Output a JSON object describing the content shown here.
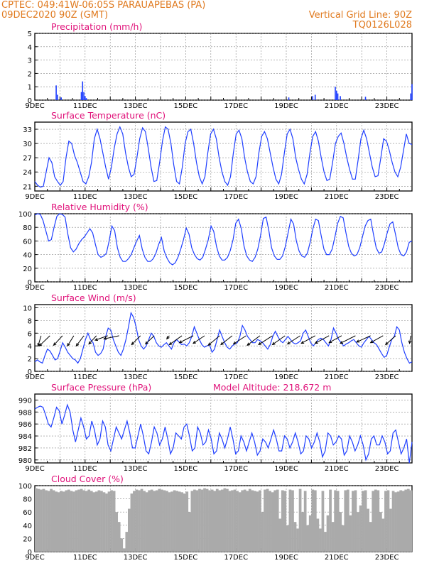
{
  "header": {
    "line1": "CPTEC:    049:41W-06:05S    PARAUAPEBAS (PA)",
    "line2": "09DEC2020 90Z (GMT)",
    "grid_label": "Vertical Grid Line: 90Z",
    "code": "TQ0126L028"
  },
  "colors": {
    "header": "#e07a1f",
    "title": "#e0127a",
    "line": "#1f3fff",
    "cloud": "#aaaaaa",
    "axis": "#000000"
  },
  "x_ticks": [
    "9DEC",
    "11DEC",
    "13DEC",
    "15DEC",
    "17DEC",
    "19DEC",
    "21DEC",
    "23DEC"
  ],
  "chart_data": [
    {
      "type": "bar",
      "title": "Precipitation (mm/h)",
      "ylim": [
        0,
        5
      ],
      "yticks": [
        "0",
        "1",
        "2",
        "3",
        "4",
        "5"
      ],
      "x_range_days": [
        9.0,
        24.0
      ],
      "points": [
        [
          9.85,
          1.1
        ],
        [
          9.9,
          0.4
        ],
        [
          10.05,
          0.2
        ],
        [
          10.85,
          0.6
        ],
        [
          10.9,
          1.4
        ],
        [
          10.95,
          0.6
        ],
        [
          11.0,
          0.3
        ],
        [
          11.05,
          0.15
        ],
        [
          19.1,
          0.2
        ],
        [
          20.05,
          0.3
        ],
        [
          20.15,
          0.4
        ],
        [
          20.95,
          1.0
        ],
        [
          21.0,
          0.7
        ],
        [
          21.05,
          0.5
        ],
        [
          21.15,
          0.3
        ],
        [
          22.15,
          0.25
        ],
        [
          23.95,
          0.5
        ],
        [
          24.0,
          1.2
        ]
      ]
    },
    {
      "type": "line",
      "title": "Surface Temperature (nC)",
      "ylim": [
        20,
        34.5
      ],
      "yticks": [
        "21",
        "24",
        "27",
        "30",
        "33"
      ],
      "x_range_days": [
        9.0,
        24.0
      ],
      "values": [
        22,
        21.2,
        20.8,
        21,
        24,
        27,
        26,
        23,
        22,
        21.2,
        22,
        27,
        30.5,
        30,
        27.5,
        26,
        24,
        22,
        21.5,
        23,
        26,
        31,
        33,
        31,
        28,
        25,
        22.5,
        25,
        29,
        32,
        33.5,
        32,
        28,
        25,
        23,
        23.5,
        27,
        31,
        33.3,
        32.5,
        29,
        25,
        22,
        22.2,
        26,
        30.5,
        33.5,
        33,
        30,
        25.5,
        22,
        21.5,
        25,
        30,
        32.5,
        33,
        30,
        26,
        23,
        21.5,
        23,
        28,
        32,
        33,
        31,
        27,
        24,
        22,
        21.2,
        23,
        28,
        32,
        32.8,
        31,
        27,
        24,
        22,
        21.5,
        23,
        28,
        31.5,
        32.5,
        31,
        28,
        25,
        22.5,
        21.5,
        23.5,
        28,
        32,
        33,
        31,
        27,
        24.5,
        22.5,
        21.5,
        23.5,
        28,
        31.5,
        32.5,
        30.5,
        27,
        24,
        22.2,
        22.5,
        26,
        30,
        31.5,
        32.2,
        30,
        27,
        24.5,
        22.5,
        22.5,
        26.5,
        31,
        32.8,
        31,
        28,
        25,
        23,
        23.2,
        27,
        31,
        30.5,
        28.5,
        26,
        24,
        23,
        25,
        28.5,
        32,
        30,
        29.8
      ]
    },
    {
      "type": "line",
      "title": "Relative Humidity (%)",
      "ylim": [
        0,
        100
      ],
      "yticks": [
        "0",
        "20",
        "40",
        "60",
        "80",
        "100"
      ],
      "x_range_days": [
        9.0,
        24.0
      ],
      "values": [
        98,
        100,
        99,
        90,
        75,
        60,
        62,
        80,
        96,
        100,
        99,
        95,
        70,
        50,
        44,
        48,
        56,
        62,
        66,
        72,
        78,
        72,
        55,
        40,
        36,
        38,
        42,
        60,
        82,
        75,
        50,
        36,
        30,
        30,
        34,
        40,
        50,
        60,
        68,
        48,
        36,
        30,
        30,
        34,
        42,
        55,
        65,
        45,
        35,
        28,
        25,
        28,
        36,
        48,
        62,
        79,
        70,
        50,
        40,
        34,
        32,
        36,
        48,
        62,
        82,
        74,
        52,
        38,
        32,
        32,
        36,
        46,
        62,
        86,
        92,
        78,
        52,
        38,
        32,
        30,
        36,
        48,
        68,
        93,
        95,
        75,
        50,
        38,
        33,
        33,
        38,
        52,
        72,
        92,
        85,
        60,
        45,
        38,
        36,
        42,
        58,
        78,
        92,
        90,
        68,
        48,
        40,
        40,
        48,
        66,
        86,
        96,
        94,
        72,
        52,
        42,
        38,
        40,
        50,
        66,
        82,
        90,
        92,
        70,
        50,
        42,
        44,
        56,
        72,
        85,
        88,
        70,
        50,
        40,
        38,
        44,
        58,
        60
      ]
    },
    {
      "type": "line",
      "title": "Surface Wind (m/s)",
      "ylim": [
        0,
        10.5
      ],
      "yticks": [
        "0",
        "2",
        "4",
        "6",
        "8",
        "10"
      ],
      "x_range_days": [
        9.0,
        24.0
      ],
      "values": [
        1.5,
        1.8,
        1.5,
        1.3,
        2.5,
        3.5,
        3.2,
        2.5,
        1.8,
        2.0,
        3.2,
        4.5,
        3.8,
        3.0,
        2.5,
        2.0,
        1.8,
        1.3,
        2.0,
        3.5,
        5.0,
        6.0,
        5.0,
        4.5,
        3.0,
        2.5,
        2.8,
        3.5,
        5.5,
        6.8,
        6.5,
        5.0,
        4.0,
        3.0,
        2.5,
        3.5,
        5.0,
        7.0,
        9.2,
        8.5,
        7.0,
        5.0,
        4.0,
        3.5,
        4.0,
        5.0,
        6.0,
        5.5,
        4.5,
        4.0,
        3.8,
        4.2,
        4.5,
        4.0,
        3.5,
        4.5,
        5.0,
        4.6,
        4.2,
        4.3,
        4.0,
        4.5,
        5.5,
        7.0,
        6.0,
        5.0,
        4.2,
        3.8,
        4.0,
        4.2,
        3.0,
        3.5,
        5.0,
        6.5,
        5.5,
        4.5,
        3.8,
        3.5,
        4.0,
        4.3,
        4.5,
        5.5,
        7.2,
        6.5,
        5.5,
        5.0,
        4.5,
        4.5,
        5.0,
        4.8,
        4.5,
        4.0,
        3.5,
        4.2,
        5.5,
        6.3,
        5.5,
        4.8,
        4.5,
        5.0,
        5.5,
        5.0,
        4.5,
        4.3,
        4.5,
        4.8,
        6.0,
        6.5,
        5.5,
        4.5,
        4.0,
        4.5,
        5.0,
        5.2,
        5.0,
        4.5,
        4.0,
        5.0,
        6.8,
        6.0,
        5.0,
        4.5,
        4.0,
        4.3,
        4.5,
        4.8,
        5.0,
        4.5,
        4.0,
        3.8,
        4.5,
        5.0,
        5.5,
        5.0,
        4.5,
        4.2,
        3.5,
        2.8,
        2.2,
        2.5,
        3.8,
        5.0,
        5.5,
        7.0,
        6.5,
        4.5,
        3.0,
        2.0,
        1.3,
        1.5
      ],
      "barbs": [
        {
          "x": 9.25,
          "dx": -0.12,
          "dy": -1.6
        },
        {
          "x": 9.6,
          "dx": -0.42,
          "dy": -1.6
        },
        {
          "x": 10.1,
          "dx": -0.35,
          "dy": -1.5
        },
        {
          "x": 10.55,
          "dx": -0.25,
          "dy": -1.6
        },
        {
          "x": 10.95,
          "dx": -0.3,
          "dy": -1.6
        },
        {
          "x": 11.45,
          "dx": -0.3,
          "dy": -1.3
        },
        {
          "x": 11.9,
          "dx": -0.5,
          "dy": -0.7
        },
        {
          "x": 12.35,
          "dx": -0.6,
          "dy": -0.5
        },
        {
          "x": 13.2,
          "dx": -0.35,
          "dy": -1.4
        },
        {
          "x": 13.75,
          "dx": -0.35,
          "dy": -1.3
        },
        {
          "x": 14.35,
          "dx": -0.1,
          "dy": -0.5
        },
        {
          "x": 14.85,
          "dx": -0.5,
          "dy": -1.4
        },
        {
          "x": 15.3,
          "dx": -0.55,
          "dy": -1.1
        },
        {
          "x": 15.75,
          "dx": -0.45,
          "dy": -1.2
        },
        {
          "x": 16.35,
          "dx": -0.45,
          "dy": -1.5
        },
        {
          "x": 16.85,
          "dx": -0.45,
          "dy": -1.4
        },
        {
          "x": 17.4,
          "dx": -0.5,
          "dy": -1.3
        },
        {
          "x": 17.95,
          "dx": -0.5,
          "dy": -1.5
        },
        {
          "x": 18.45,
          "dx": -0.55,
          "dy": -1.4
        },
        {
          "x": 18.95,
          "dx": -0.5,
          "dy": -1.4
        },
        {
          "x": 19.55,
          "dx": -0.5,
          "dy": -1.3
        },
        {
          "x": 20.15,
          "dx": -0.55,
          "dy": -1.2
        },
        {
          "x": 20.7,
          "dx": -0.55,
          "dy": -1.2
        },
        {
          "x": 21.2,
          "dx": -0.5,
          "dy": -1.1
        },
        {
          "x": 21.75,
          "dx": -0.6,
          "dy": -1.2
        },
        {
          "x": 22.35,
          "dx": -0.55,
          "dy": -1.0
        },
        {
          "x": 22.85,
          "dx": -0.5,
          "dy": -1.1
        },
        {
          "x": 23.35,
          "dx": -0.4,
          "dy": -1.4
        },
        {
          "x": 23.95,
          "dx": -0.05,
          "dy": -1.2
        }
      ]
    },
    {
      "type": "line",
      "title": "Surface Pressure (hPa)",
      "subtitle": "Model Altitude: 218.672 m",
      "ylim": [
        979.5,
        991
      ],
      "yticks": [
        "980",
        "982",
        "984",
        "986",
        "988",
        "990"
      ],
      "x_range_days": [
        9.0,
        24.0
      ],
      "values": [
        988.5,
        988.8,
        989.0,
        988.8,
        987.5,
        986.0,
        985.5,
        987.0,
        988.8,
        988.2,
        986.0,
        987.5,
        989.2,
        988.0,
        985.0,
        983.0,
        985.0,
        987.0,
        985.5,
        983.5,
        984.0,
        986.5,
        985.0,
        982.5,
        983.5,
        986.5,
        985.5,
        982.5,
        981.5,
        983.5,
        985.5,
        984.5,
        983.5,
        985.0,
        986.5,
        984.5,
        982.0,
        982.0,
        984.0,
        986.0,
        984.0,
        981.5,
        981.0,
        983.0,
        985.5,
        984.5,
        982.5,
        983.5,
        985.5,
        983.5,
        981.0,
        982.0,
        984.5,
        984.0,
        983.5,
        985.5,
        986.0,
        984.0,
        981.5,
        982.0,
        985.5,
        984.5,
        982.5,
        983.0,
        985.0,
        983.5,
        981.0,
        981.5,
        984.5,
        983.5,
        982.0,
        983.5,
        985.5,
        983.5,
        981.0,
        981.5,
        984.0,
        983.0,
        981.5,
        983.0,
        984.5,
        983.0,
        980.8,
        981.5,
        983.5,
        983.0,
        982.0,
        983.5,
        985.0,
        983.5,
        981.5,
        981.5,
        984.0,
        983.5,
        982.0,
        983.0,
        984.5,
        983.0,
        981.0,
        981.5,
        984.0,
        983.5,
        982.0,
        983.0,
        984.5,
        983.0,
        980.5,
        981.5,
        984.5,
        984.0,
        982.5,
        983.0,
        984.0,
        983.5,
        980.8,
        981.5,
        984.0,
        983.0,
        981.5,
        982.5,
        984.0,
        982.5,
        980.0,
        981.0,
        983.5,
        984.0,
        982.5,
        982.5,
        984.0,
        983.0,
        981.0,
        981.5,
        984.5,
        985.0,
        983.0,
        981.0,
        982.0,
        983.5,
        979.5,
        983.0
      ]
    },
    {
      "type": "bar",
      "title": "Cloud Cover (%)",
      "ylim": [
        0,
        100
      ],
      "yticks": [
        "0",
        "20",
        "40",
        "60",
        "80",
        "100"
      ],
      "x_range_days": [
        9.0,
        24.0
      ],
      "values": [
        96,
        95,
        94,
        95,
        93,
        92,
        95,
        93,
        91,
        90,
        92,
        91,
        93,
        94,
        92,
        91,
        93,
        94,
        95,
        93,
        92,
        94,
        92,
        90,
        91,
        93,
        92,
        90,
        88,
        91,
        93,
        92,
        60,
        45,
        20,
        5,
        30,
        65,
        88,
        92,
        94,
        93,
        95,
        92,
        90,
        93,
        94,
        92,
        93,
        95,
        94,
        93,
        92,
        90,
        91,
        93,
        92,
        91,
        90,
        88,
        91,
        60,
        92,
        94,
        93,
        95,
        94,
        96,
        95,
        93,
        94,
        92,
        95,
        93,
        94,
        96,
        95,
        92,
        93,
        94,
        92,
        90,
        93,
        94,
        92,
        95,
        93,
        92,
        91,
        93,
        60,
        94,
        95,
        92,
        90,
        93,
        94,
        50,
        93,
        92,
        40,
        94,
        93,
        45,
        35,
        95,
        60,
        92,
        40,
        55,
        94,
        93,
        50,
        35,
        92,
        30,
        55,
        94,
        45,
        93,
        92,
        60,
        40,
        93,
        94,
        55,
        92,
        93,
        60,
        70,
        92,
        93,
        65,
        45,
        92,
        94,
        93,
        60,
        50,
        92,
        93,
        65,
        92,
        90,
        91,
        93,
        92,
        94,
        95,
        93
      ]
    }
  ]
}
